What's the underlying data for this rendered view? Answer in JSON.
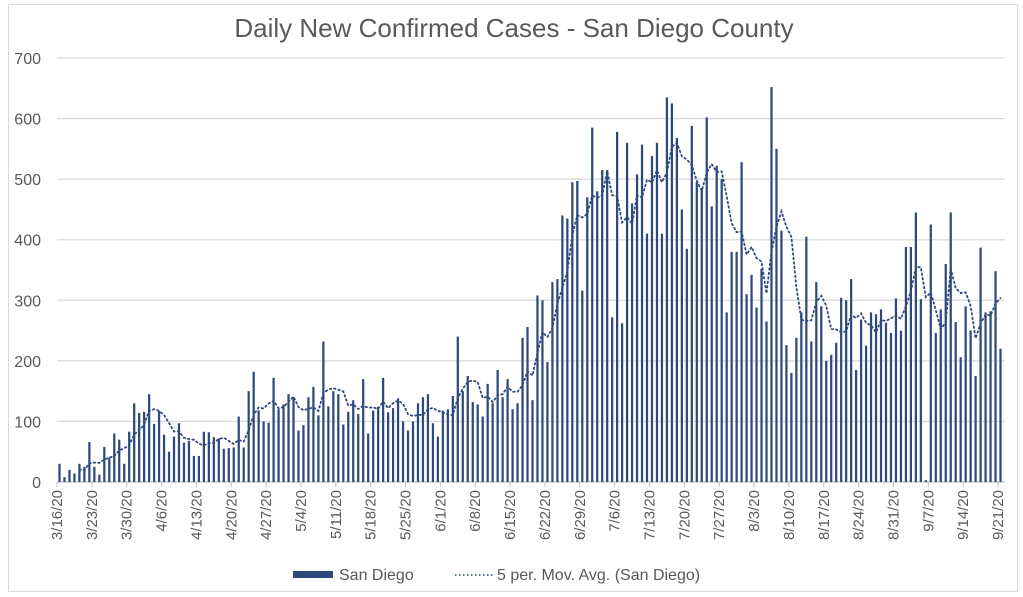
{
  "chart_data": {
    "type": "bar",
    "title": "Daily New Confirmed Cases - San Diego County",
    "xlabel": "",
    "ylabel": "",
    "ylim": [
      0,
      700
    ],
    "yticks": [
      0,
      100,
      200,
      300,
      400,
      500,
      600,
      700
    ],
    "grid": true,
    "legend_position": "bottom",
    "start_date": "3/16/20",
    "x_tick_labels": [
      "3/16/20",
      "3/23/20",
      "3/30/20",
      "4/6/20",
      "4/13/20",
      "4/20/20",
      "4/27/20",
      "5/4/20",
      "5/11/20",
      "5/18/20",
      "5/25/20",
      "6/1/20",
      "6/8/20",
      "6/15/20",
      "6/22/20",
      "6/29/20",
      "7/6/20",
      "7/13/20",
      "7/20/20",
      "7/27/20",
      "8/3/20",
      "8/10/20",
      "8/17/20",
      "8/24/20",
      "8/31/20",
      "9/7/20",
      "9/14/20",
      "9/21/20"
    ],
    "series": [
      {
        "name": "San Diego",
        "type": "bar",
        "color": "#2e4a7d",
        "values": [
          30,
          8,
          20,
          14,
          30,
          25,
          66,
          25,
          12,
          58,
          40,
          80,
          70,
          30,
          83,
          130,
          114,
          116,
          145,
          96,
          117,
          78,
          50,
          75,
          97,
          65,
          68,
          43,
          43,
          83,
          82,
          74,
          72,
          55,
          56,
          57,
          108,
          57,
          150,
          182,
          118,
          100,
          98,
          172,
          120,
          128,
          145,
          140,
          85,
          94,
          140,
          157,
          110,
          232,
          125,
          150,
          145,
          95,
          116,
          135,
          112,
          170,
          80,
          118,
          124,
          172,
          115,
          122,
          138,
          100,
          85,
          100,
          130,
          140,
          145,
          97,
          75,
          118,
          120,
          142,
          240,
          150,
          175,
          132,
          128,
          108,
          162,
          130,
          185,
          140,
          170,
          120,
          130,
          238,
          256,
          135,
          308,
          300,
          198,
          330,
          335,
          440,
          435,
          495,
          497,
          316,
          470,
          585,
          480,
          515,
          515,
          272,
          578,
          262,
          560,
          460,
          508,
          557,
          410,
          538,
          560,
          410,
          635,
          625,
          568,
          450,
          385,
          588,
          495,
          485,
          602,
          455,
          522,
          500,
          280,
          380,
          380,
          528,
          310,
          342,
          288,
          352,
          265,
          652,
          550,
          415,
          226,
          180,
          238,
          280,
          405,
          232,
          330,
          290,
          200,
          210,
          230,
          304,
          300,
          335,
          185,
          268,
          225,
          280,
          277,
          285,
          263,
          246,
          303,
          250,
          388,
          388,
          445,
          302,
          3,
          425,
          246,
          285,
          360,
          445,
          264,
          206,
          290,
          250,
          175,
          387,
          280,
          282,
          348,
          220
        ]
      },
      {
        "name": "5 per. Mov. Avg. (San Diego)",
        "type": "line",
        "style": "dotted",
        "color": "#2e4a7d",
        "period": 5
      }
    ]
  }
}
